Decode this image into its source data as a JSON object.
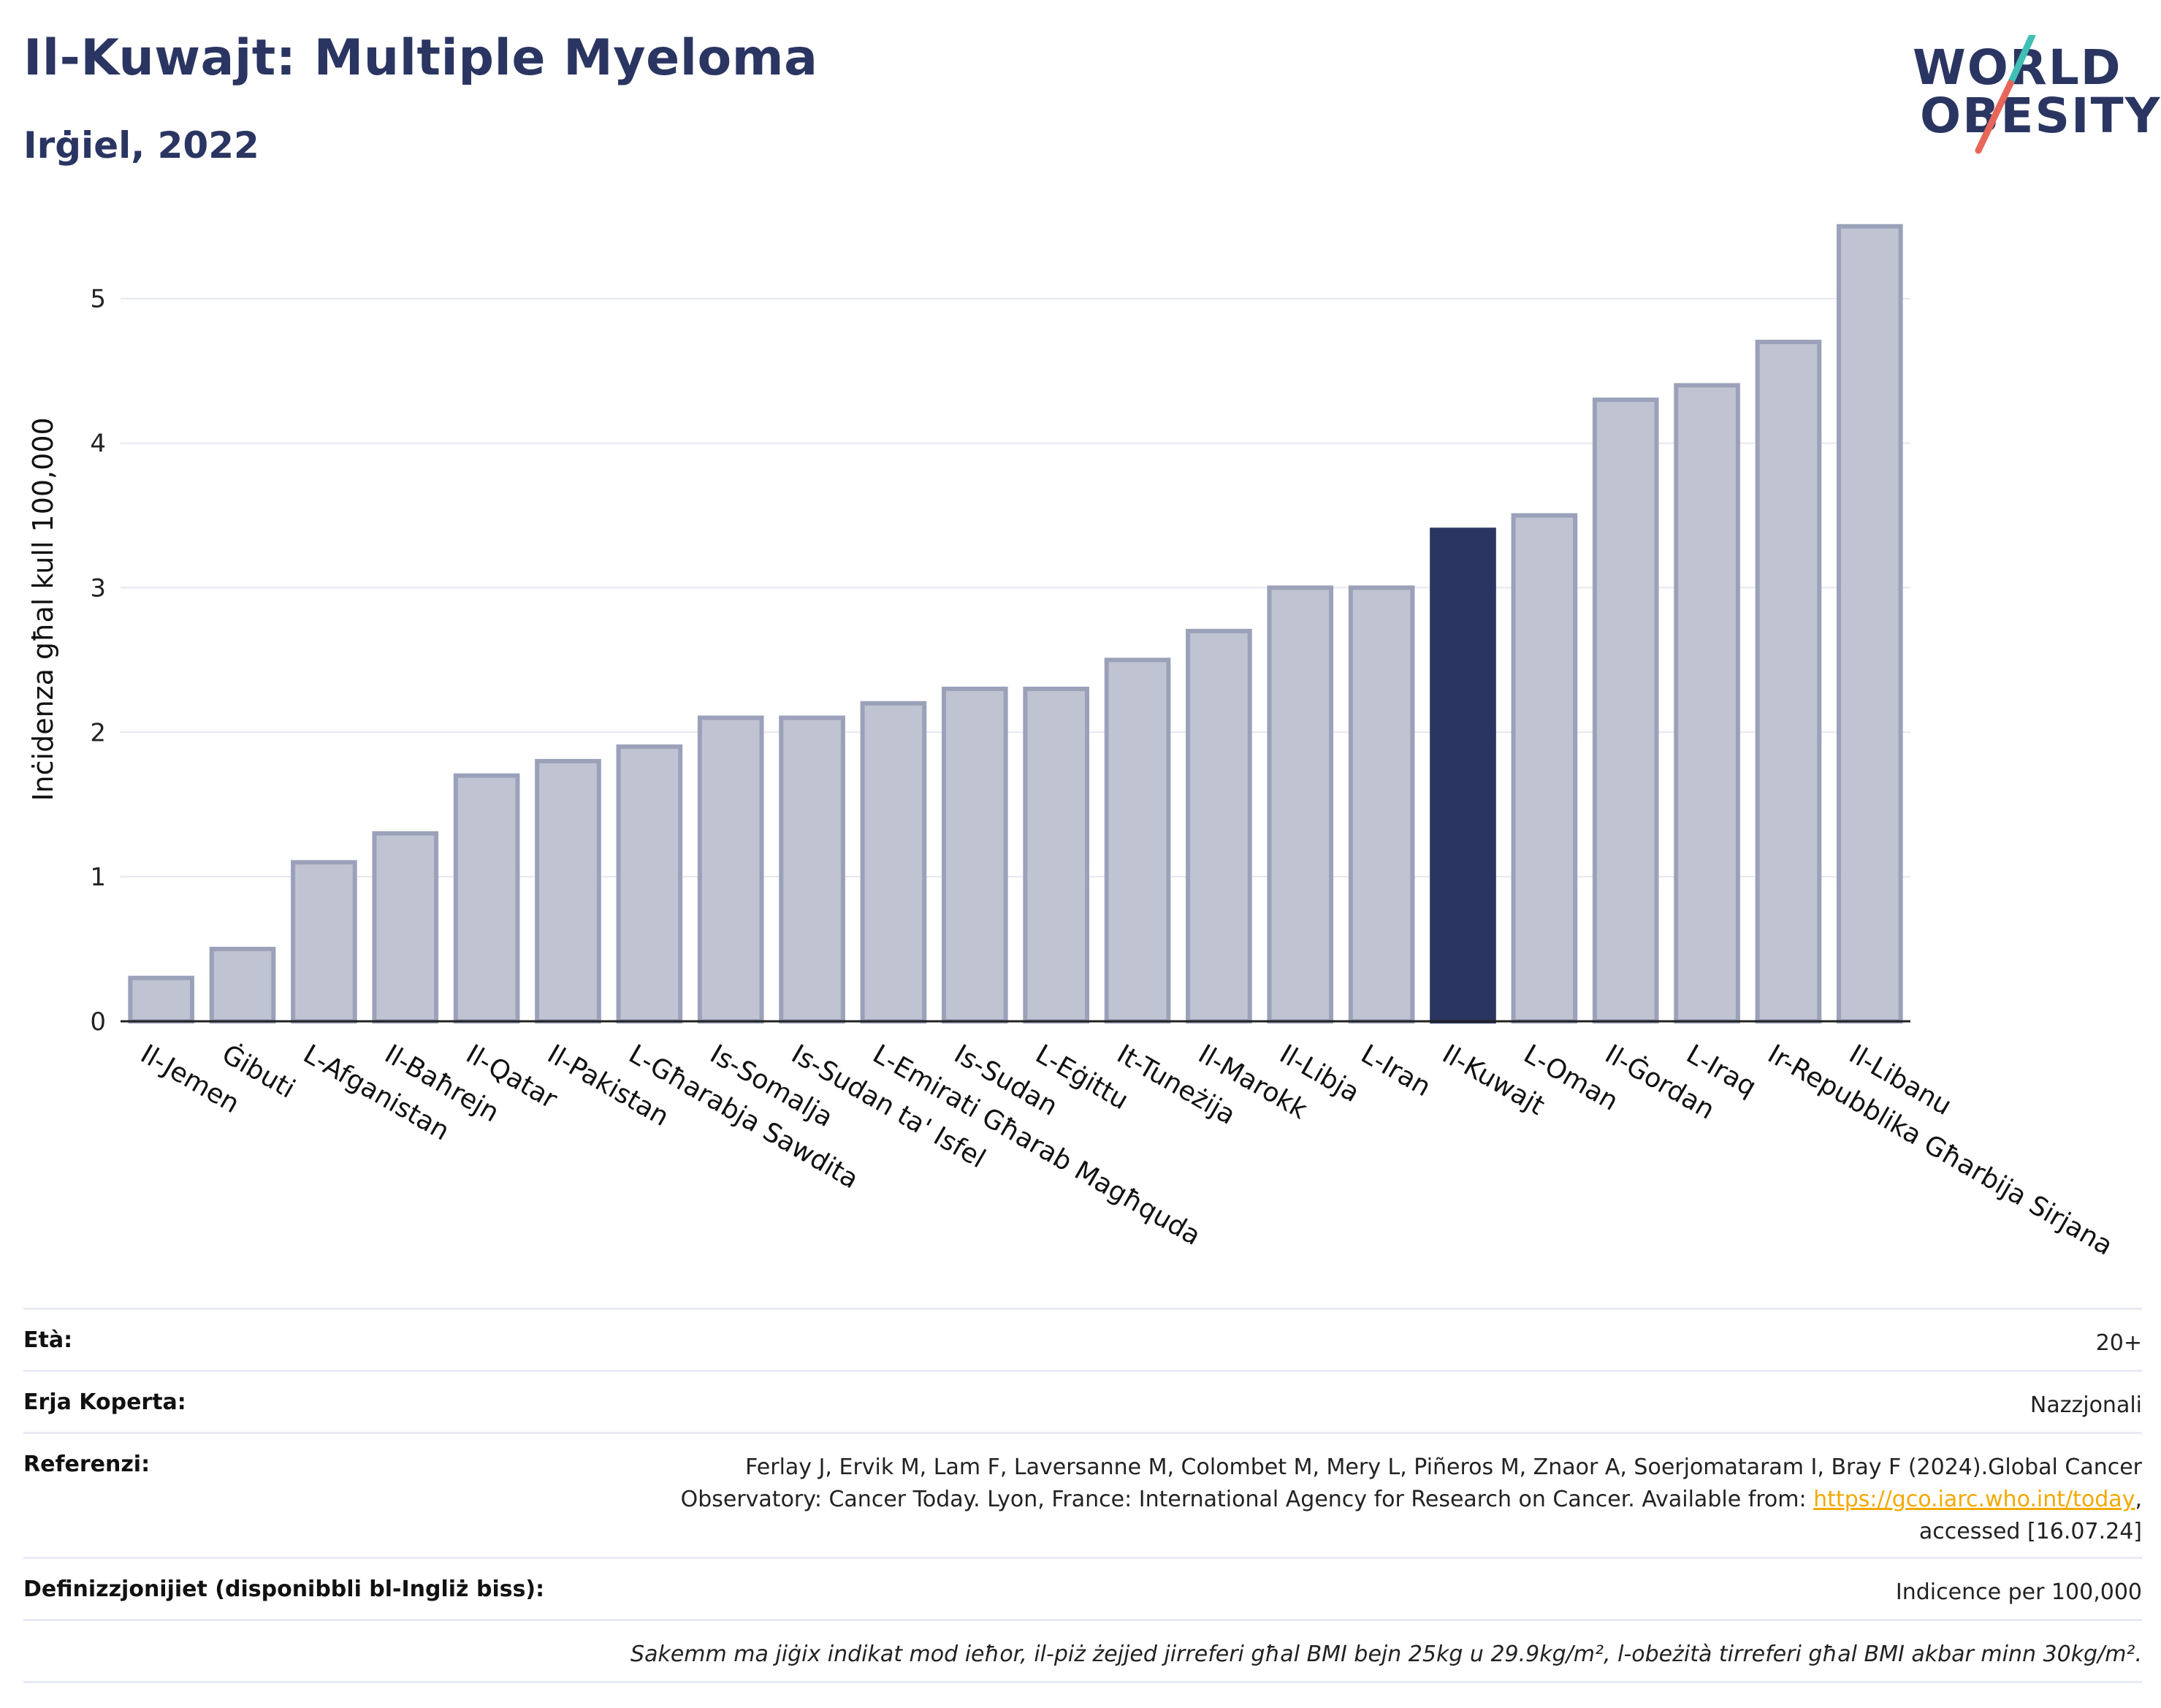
{
  "header": {
    "title": "Il-Kuwajt: Multiple Myeloma",
    "subtitle": "Irġiel, 2022"
  },
  "logo": {
    "line1": "WORLD",
    "line2": "OBESITY",
    "slash_colors": [
      "#3fbfb5",
      "#e8655a"
    ]
  },
  "colors": {
    "bar_default": "#c0c4d2",
    "bar_default_border": "#9aa1b8",
    "bar_highlight": "#2b3561",
    "title": "#2b3561",
    "link": "#f2a900"
  },
  "chart_data": {
    "type": "bar",
    "ylabel": "Inċidenza għal kull 100,000",
    "xlabel": "",
    "ylim": [
      0,
      5.6
    ],
    "yticks": [
      0,
      1,
      2,
      3,
      4,
      5
    ],
    "grid": true,
    "highlight": "Il-Kuwajt",
    "categories": [
      "Il-Jemen",
      "Ġibuti",
      "L-Afganistan",
      "Il-Baħrejn",
      "Il-Qatar",
      "Il-Pakistan",
      "L-Għarabja Sawdita",
      "Is-Somalja",
      "Is-Sudan ta' Isfel",
      "L-Emirati Għarab Magħquda",
      "Is-Sudan",
      "L-Eġittu",
      "It-Tuneżija",
      "Il-Marokk",
      "Il-Libja",
      "L-Iran",
      "Il-Kuwajt",
      "L-Oman",
      "Il-Ġordan",
      "L-Iraq",
      "Ir-Repubblika Għarbija Sirjana",
      "Il-Libanu"
    ],
    "values": [
      0.3,
      0.5,
      1.1,
      1.3,
      1.7,
      1.8,
      1.9,
      2.1,
      2.1,
      2.2,
      2.3,
      2.3,
      2.5,
      2.7,
      3.0,
      3.0,
      3.4,
      3.5,
      4.3,
      4.4,
      4.7,
      5.5
    ]
  },
  "meta": {
    "age_label": "Età:",
    "age_value": "20+",
    "area_label": "Erja Koperta:",
    "area_value": "Nazzjonali",
    "ref_label": "Referenzi:",
    "ref_line1": "Ferlay J, Ervik M, Lam F, Laversanne M, Colombet M, Mery L, Piñeros M, Znaor A, Soerjomataram I, Bray F (2024).Global Cancer",
    "ref_line2": "Observatory: Cancer Today. Lyon, France: International Agency for Research on Cancer. Available from: ",
    "ref_link": "https://gco.iarc.who.int/today",
    "ref_line2_end": ",",
    "ref_line3": "accessed [16.07.24]",
    "def_label": "Definizzjonijiet (disponibbli bl-Ingliż biss):",
    "def_value": "Indicence per 100,000",
    "note": "Sakemm ma jiġix indikat mod ieħor, il-piż żejjed jirreferi għal BMI bejn 25kg u 29.9kg/m², l-obeżità tirreferi għal BMI akbar minn 30kg/m²."
  }
}
